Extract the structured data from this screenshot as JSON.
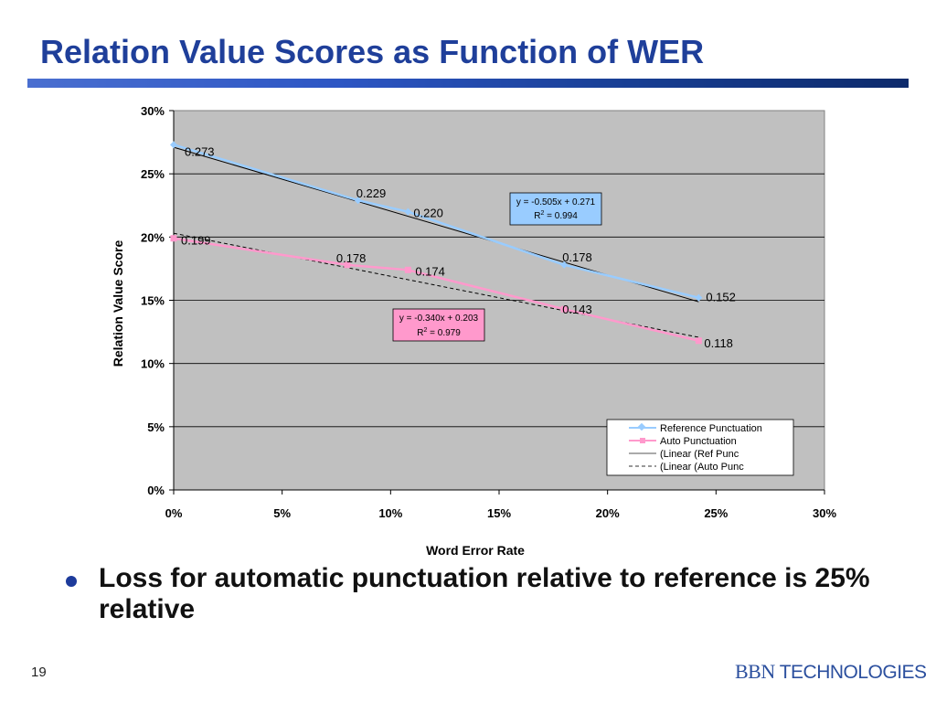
{
  "slide": {
    "title": "Relation Value Scores as Function of WER",
    "bullet": "Loss for automatic punctuation relative to reference is 25% relative",
    "page_number": "19",
    "logo_serif": "BBN",
    "logo_sans": " TECHNOLOGIES"
  },
  "colors": {
    "title": "#1f3f9a",
    "plot_bg": "#c0c0c0",
    "ref_series": "#99ccff",
    "auto_series": "#ff99cc",
    "ref_box": "#99ccff",
    "auto_box": "#ff99cc"
  },
  "chart_data": {
    "type": "scatter",
    "xlabel": "Word Error Rate",
    "ylabel": "Relation Value Score",
    "xlim": [
      0,
      0.3
    ],
    "ylim": [
      0,
      0.3
    ],
    "x_ticks": [
      0,
      0.05,
      0.1,
      0.15,
      0.2,
      0.25,
      0.3
    ],
    "x_tick_labels": [
      "0%",
      "5%",
      "10%",
      "15%",
      "20%",
      "25%",
      "30%"
    ],
    "y_ticks": [
      0,
      0.05,
      0.1,
      0.15,
      0.2,
      0.25,
      0.3
    ],
    "y_tick_labels": [
      "0%",
      "5%",
      "10%",
      "15%",
      "20%",
      "25%",
      "30%"
    ],
    "grid": "horizontal",
    "legend_position": "bottom-right",
    "series": [
      {
        "name": "Reference Punctuation",
        "marker": "diamond",
        "color": "#99ccff",
        "x": [
          0,
          0.085,
          0.108,
          0.18,
          0.242
        ],
        "y": [
          0.273,
          0.229,
          0.22,
          0.178,
          0.152
        ],
        "labels": [
          "0.273",
          "0.229",
          "0.220",
          "0.178",
          "0.152"
        ]
      },
      {
        "name": "Auto Punctuation",
        "marker": "square",
        "color": "#ff99cc",
        "x": [
          0,
          0.08,
          0.108,
          0.18,
          0.242
        ],
        "y": [
          0.199,
          0.178,
          0.174,
          0.143,
          0.118
        ],
        "labels": [
          "0.199",
          "0.178",
          "0.174",
          "0.143",
          "0.118"
        ]
      }
    ],
    "trendlines": [
      {
        "name": "(Linear (Ref Punc",
        "style": "solid",
        "color": "#000000",
        "slope": -0.505,
        "intercept": 0.271,
        "x_range": [
          0,
          0.242
        ],
        "equation": "y = -0.505x + 0.271",
        "r2": "R",
        "r2_sup": "2",
        "r2_value": " = 0.994"
      },
      {
        "name": "(Linear (Auto Punc",
        "style": "dashed",
        "color": "#000000",
        "slope": -0.34,
        "intercept": 0.203,
        "x_range": [
          0,
          0.242
        ],
        "equation": "y = -0.340x + 0.203",
        "r2": "R",
        "r2_sup": "2",
        "r2_value": " = 0.979"
      }
    ],
    "legend": [
      {
        "label": "Reference Punctuation",
        "kind": "ref"
      },
      {
        "label": "Auto Punctuation",
        "kind": "auto"
      },
      {
        "label": "(Linear (Ref Punc",
        "kind": "ref-trend"
      },
      {
        "label": "(Linear (Auto Punc",
        "kind": "auto-trend"
      }
    ]
  }
}
